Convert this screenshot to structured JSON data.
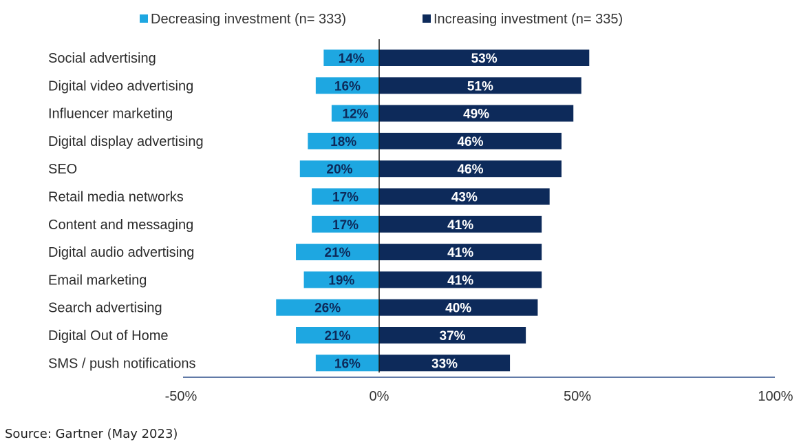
{
  "chart_data": {
    "type": "bar",
    "orientation": "horizontal-diverging",
    "categories": [
      "Social advertising",
      "Digital video advertising",
      "Influencer marketing",
      "Digital display advertising",
      "SEO",
      "Retail media networks",
      "Content and messaging",
      "Digital audio advertising",
      "Email marketing",
      "Search advertising",
      "Digital Out of Home",
      "SMS / push notifications"
    ],
    "series": [
      {
        "name": "Decreasing investment (n= 333)",
        "color": "#1ea7e1",
        "values": [
          -14,
          -16,
          -12,
          -18,
          -20,
          -17,
          -17,
          -21,
          -19,
          -26,
          -21,
          -16
        ],
        "labels": [
          "14%",
          "16%",
          "12%",
          "18%",
          "20%",
          "17%",
          "17%",
          "21%",
          "19%",
          "26%",
          "21%",
          "16%"
        ]
      },
      {
        "name": "Increasing investment (n= 335)",
        "color": "#0d2a5a",
        "values": [
          53,
          51,
          49,
          46,
          46,
          43,
          41,
          41,
          41,
          40,
          37,
          33
        ],
        "labels": [
          "53%",
          "51%",
          "49%",
          "46%",
          "46%",
          "43%",
          "41%",
          "41%",
          "41%",
          "40%",
          "37%",
          "33%"
        ]
      }
    ],
    "xlim": [
      -50,
      100
    ],
    "xticks": [
      -50,
      0,
      50,
      100
    ],
    "xtick_labels": [
      "-50%",
      "0%",
      "50%",
      "100%"
    ],
    "grid": false,
    "legend_position": "top"
  },
  "source": "Source: Gartner (May 2023)"
}
